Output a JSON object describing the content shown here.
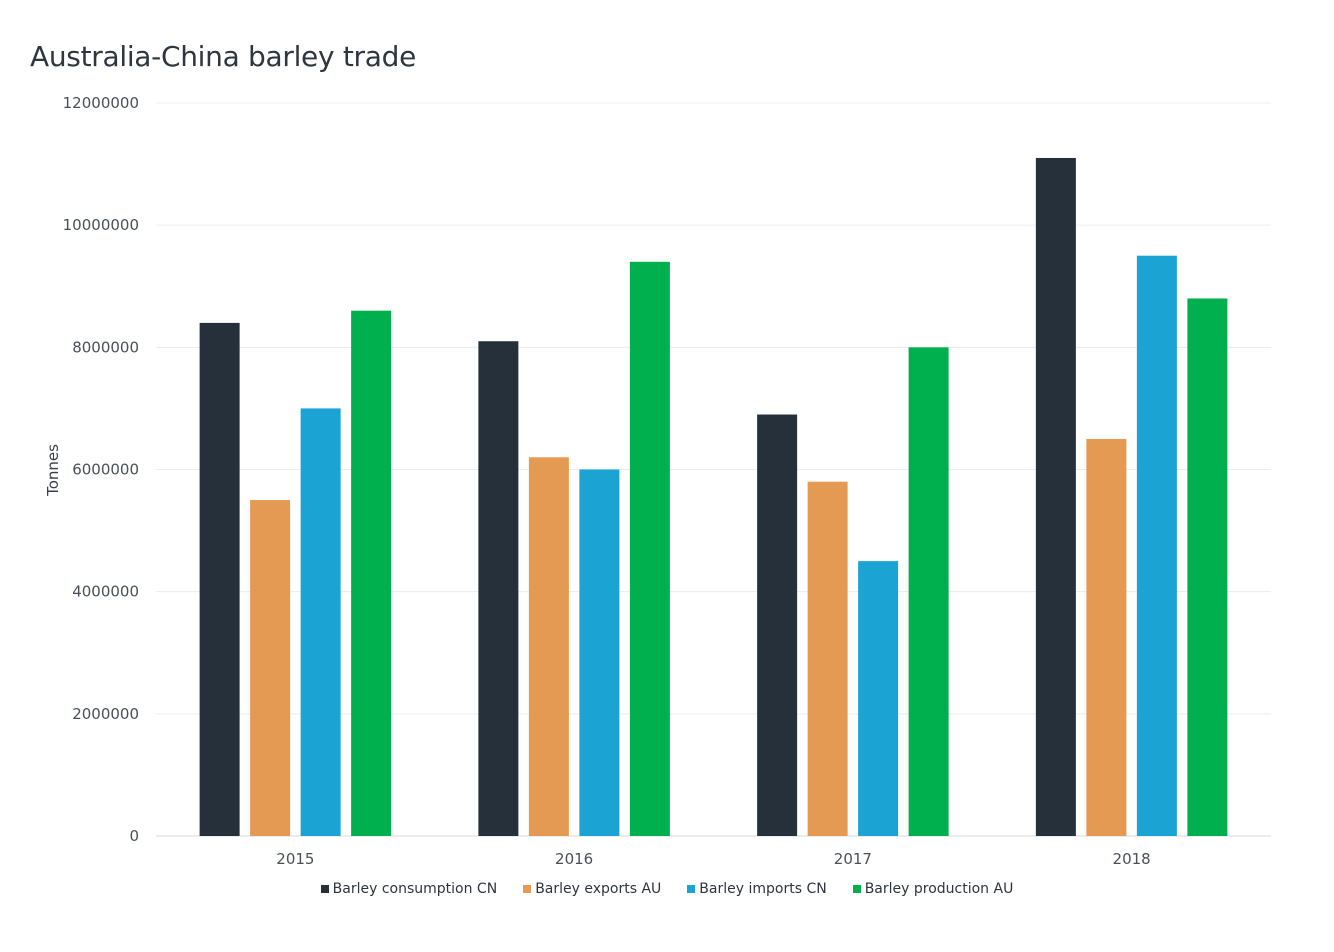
{
  "chart_data": {
    "type": "bar",
    "title": "Australia-China barley trade",
    "xlabel": "",
    "ylabel": "Tonnes",
    "ylim": [
      0,
      12000000
    ],
    "yticks": [
      "0",
      "2000000",
      "4000000",
      "6000000",
      "8000000",
      "10000000",
      "12000000"
    ],
    "categories": [
      "2015",
      "2016",
      "2017",
      "2018"
    ],
    "grid": true,
    "legend_position": "bottom",
    "series": [
      {
        "name": "Barley consumption CN",
        "color": "#26303b",
        "values": [
          8400000,
          8100000,
          6900000,
          11100000
        ]
      },
      {
        "name": "Barley exports AU",
        "color": "#e49a52",
        "values": [
          5500000,
          6200000,
          5800000,
          6500000
        ]
      },
      {
        "name": "Barley imports CN",
        "color": "#1ba3d3",
        "values": [
          7000000,
          6000000,
          4500000,
          9500000
        ]
      },
      {
        "name": "Barley production AU",
        "color": "#00b04f",
        "values": [
          8600000,
          9400000,
          8000000,
          8800000
        ]
      }
    ]
  }
}
